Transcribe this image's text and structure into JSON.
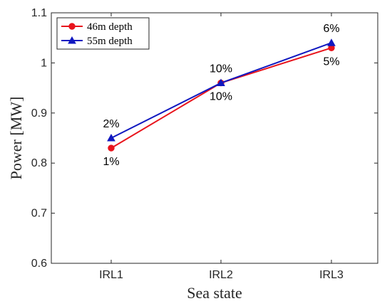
{
  "chart_data": {
    "type": "line",
    "title": "",
    "xlabel": "Sea state",
    "ylabel": "Power [MW]",
    "categories": [
      "IRL1",
      "IRL2",
      "IRL3"
    ],
    "ylim": [
      0.6,
      1.1
    ],
    "yticks": [
      0.6,
      0.7,
      0.8,
      0.9,
      1,
      1.1
    ],
    "ytick_labels": [
      "0.6",
      "0.7",
      "0.8",
      "0.9",
      "1",
      "1.1"
    ],
    "grid": false,
    "legend_position": "top-left",
    "series": [
      {
        "name": "46m depth",
        "color": "#e8141c",
        "marker": "circle",
        "values": [
          0.83,
          0.96,
          1.03
        ],
        "labels": [
          "1%",
          "10%",
          "5%"
        ],
        "label_position": "below"
      },
      {
        "name": "55m depth",
        "color": "#1018c0",
        "marker": "triangle",
        "values": [
          0.85,
          0.96,
          1.04
        ],
        "labels": [
          "2%",
          "10%",
          "6%"
        ],
        "label_position": "above"
      }
    ]
  }
}
